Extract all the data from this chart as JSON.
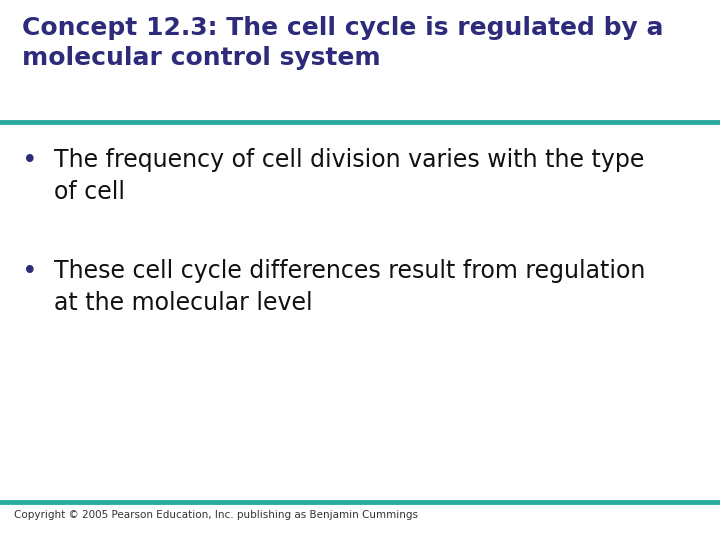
{
  "title_line1": "Concept 12.3: The cell cycle is regulated by a",
  "title_line2": "molecular control system",
  "title_color": "#2E2B7A",
  "title_fontsize": 18,
  "separator_color": "#2AABA0",
  "separator_linewidth": 3.5,
  "bullet_color": "#333333",
  "bullet_dot_color": "#2E2B7A",
  "bullet1_line1": "The frequency of cell division varies with the type",
  "bullet1_line2": "of cell",
  "bullet2_line1": "These cell cycle differences result from regulation",
  "bullet2_line2": "at the molecular level",
  "body_fontsize": 17,
  "body_color": "#111111",
  "copyright_text": "Copyright © 2005 Pearson Education, Inc. publishing as Benjamin Cummings",
  "copyright_fontsize": 7.5,
  "copyright_color": "#333333",
  "background_color": "#ffffff"
}
